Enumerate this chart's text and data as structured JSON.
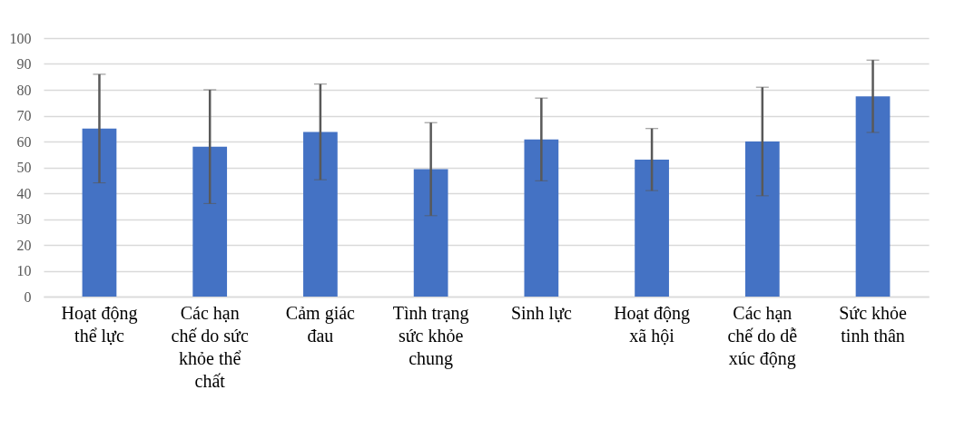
{
  "chart_data": {
    "type": "bar",
    "categories": [
      "Hoạt động thể lực",
      "Các hạn chế do sức khỏe thể chất",
      "Cảm giác đau",
      "Tình trạng sức khỏe chung",
      "Sinh lực",
      "Hoạt động xã hội",
      "Các hạn chế do dễ xúc động",
      "Sức khỏe tinh thân"
    ],
    "values": [
      65,
      58,
      63.7,
      49.3,
      60.8,
      53,
      60,
      77.5
    ],
    "errors": [
      21,
      22,
      18.5,
      18,
      16,
      12,
      21,
      14
    ],
    "color": "#4472c4",
    "ylim": [
      0,
      100
    ],
    "yticks": [
      0,
      10,
      20,
      30,
      40,
      50,
      60,
      70,
      80,
      90,
      100
    ],
    "grid": "y"
  }
}
